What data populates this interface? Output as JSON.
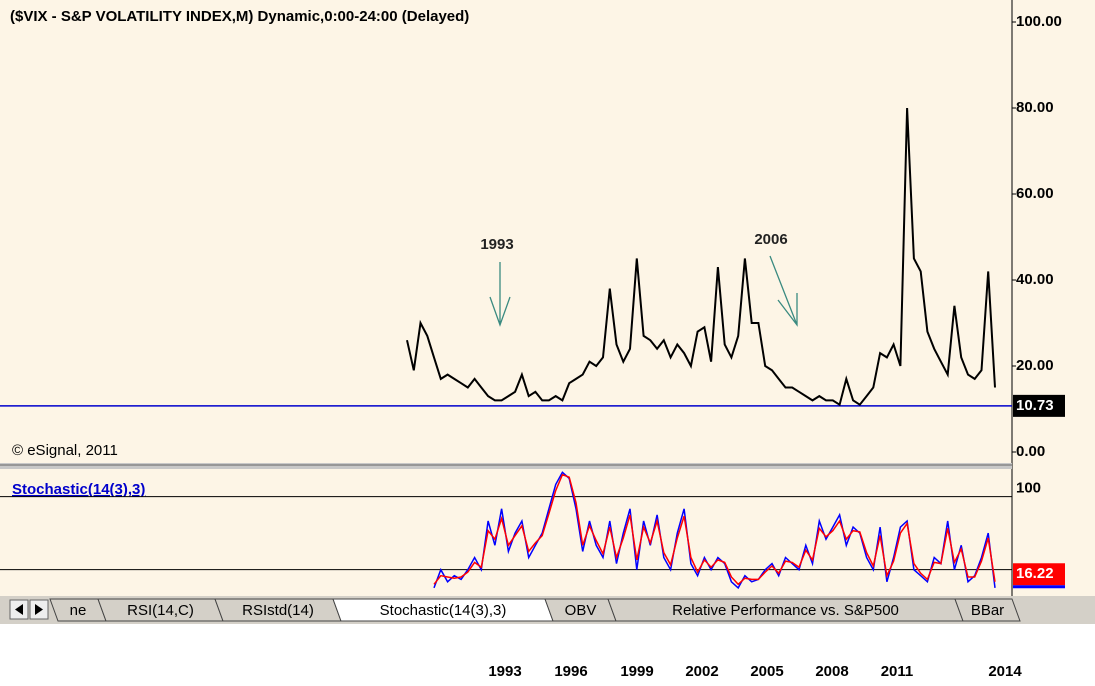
{
  "chart_data": [
    {
      "type": "line",
      "title": "($VIX - S&P VOLATILITY INDEX,M) Dynamic,0:00-24:00 (Delayed)",
      "x": [
        1990,
        1990.25,
        1990.5,
        1990.75,
        1991,
        1991.25,
        1991.5,
        1991.75,
        1992,
        1992.25,
        1992.5,
        1992.75,
        1993,
        1993.25,
        1993.5,
        1993.75,
        1994,
        1994.25,
        1994.5,
        1994.75,
        1995,
        1995.25,
        1995.5,
        1995.75,
        1996,
        1996.25,
        1996.5,
        1996.75,
        1997,
        1997.25,
        1997.5,
        1997.75,
        1998,
        1998.25,
        1998.5,
        1998.75,
        1999,
        1999.25,
        1999.5,
        1999.75,
        2000,
        2000.25,
        2000.5,
        2000.75,
        2001,
        2001.25,
        2001.5,
        2001.75,
        2002,
        2002.25,
        2002.5,
        2002.75,
        2003,
        2003.25,
        2003.5,
        2003.75,
        2004,
        2004.25,
        2004.5,
        2004.75,
        2005,
        2005.25,
        2005.5,
        2005.75,
        2006,
        2006.25,
        2006.5,
        2006.75,
        2007,
        2007.25,
        2007.5,
        2007.75,
        2008,
        2008.25,
        2008.5,
        2008.75,
        2009,
        2009.25,
        2009.5,
        2009.75,
        2010,
        2010.25,
        2010.5,
        2010.75,
        2011,
        2011.25,
        2011.5,
        2011.75
      ],
      "series": [
        {
          "color": "#000000",
          "values": [
            26,
            19,
            30,
            27,
            22,
            17,
            18,
            17,
            16,
            15,
            17,
            15,
            13,
            12,
            12,
            13,
            14,
            18,
            13,
            14,
            12,
            12,
            13,
            12,
            16,
            17,
            18,
            21,
            20,
            22,
            38,
            25,
            21,
            24,
            45,
            27,
            26,
            24,
            26,
            22,
            25,
            23,
            20,
            28,
            29,
            21,
            43,
            25,
            22,
            27,
            45,
            30,
            30,
            20,
            19,
            17,
            15,
            15,
            14,
            13,
            12,
            13,
            12,
            12,
            11,
            17,
            12,
            11,
            13,
            15,
            23,
            22,
            25,
            20,
            80,
            45,
            42,
            28,
            24,
            21,
            18,
            34,
            22,
            18,
            17,
            19,
            42,
            15
          ]
        }
      ],
      "ylim": [
        0,
        100
      ],
      "yticks": [
        {
          "value": 0,
          "label": "0.00"
        },
        {
          "value": 20,
          "label": "20.00"
        },
        {
          "value": 40,
          "label": "40.00"
        },
        {
          "value": 60,
          "label": "60.00"
        },
        {
          "value": 80,
          "label": "80.00"
        },
        {
          "value": 100,
          "label": "100.00"
        }
      ],
      "current_value": 10.73,
      "current_color": "#0000cc",
      "xticks": [
        1993,
        1996,
        1999,
        2002,
        2005,
        2008,
        2011,
        2014
      ],
      "annotations": [
        "1993",
        "2006"
      ],
      "copyright": "© eSignal, 2011"
    },
    {
      "type": "line",
      "title": "Stochastic(14(3),3)",
      "x": [
        1990,
        1990.25,
        1990.5,
        1990.75,
        1991,
        1991.25,
        1991.5,
        1991.75,
        1992,
        1992.25,
        1992.5,
        1992.75,
        1993,
        1993.25,
        1993.5,
        1993.75,
        1994,
        1994.25,
        1994.5,
        1994.75,
        1995,
        1995.25,
        1995.5,
        1995.75,
        1996,
        1996.25,
        1996.5,
        1996.75,
        1997,
        1997.25,
        1997.5,
        1997.75,
        1998,
        1998.25,
        1998.5,
        1998.75,
        1999,
        1999.25,
        1999.5,
        1999.75,
        2000,
        2000.25,
        2000.5,
        2000.75,
        2001,
        2001.25,
        2001.5,
        2001.75,
        2002,
        2002.25,
        2002.5,
        2002.75,
        2003,
        2003.25,
        2003.5,
        2003.75,
        2004,
        2004.25,
        2004.5,
        2004.75,
        2005,
        2005.25,
        2005.5,
        2005.75,
        2006,
        2006.25,
        2006.5,
        2006.75,
        2007,
        2007.25,
        2007.5,
        2007.75,
        2008,
        2008.25,
        2008.5,
        2008.75,
        2009,
        2009.25,
        2009.5,
        2009.75,
        2010,
        2010.25,
        2010.5,
        2010.75,
        2011,
        2011.25,
        2011.5,
        2011.75
      ],
      "series": [
        {
          "color": "#0000ff",
          "values": [
            null,
            null,
            null,
            null,
            5,
            20,
            10,
            15,
            12,
            20,
            30,
            20,
            60,
            40,
            70,
            35,
            50,
            60,
            30,
            40,
            50,
            70,
            90,
            100,
            95,
            70,
            35,
            60,
            40,
            30,
            60,
            25,
            50,
            70,
            20,
            60,
            40,
            65,
            30,
            20,
            50,
            70,
            25,
            15,
            30,
            20,
            30,
            25,
            10,
            5,
            15,
            10,
            12,
            20,
            25,
            15,
            30,
            25,
            20,
            40,
            25,
            60,
            45,
            55,
            65,
            40,
            55,
            50,
            30,
            20,
            55,
            10,
            30,
            55,
            60,
            20,
            15,
            10,
            30,
            25,
            60,
            20,
            40,
            10,
            15,
            30,
            50,
            5
          ]
        },
        {
          "color": "#ff0000",
          "values": [
            null,
            null,
            null,
            null,
            8,
            15,
            14,
            13,
            14,
            18,
            26,
            22,
            52,
            45,
            62,
            40,
            48,
            56,
            35,
            42,
            48,
            66,
            85,
            98,
            96,
            75,
            40,
            56,
            44,
            33,
            55,
            30,
            46,
            65,
            28,
            55,
            42,
            60,
            34,
            24,
            46,
            64,
            30,
            18,
            28,
            22,
            28,
            26,
            14,
            8,
            13,
            12,
            12,
            18,
            23,
            17,
            27,
            26,
            22,
            36,
            28,
            54,
            47,
            52,
            60,
            45,
            52,
            51,
            34,
            23,
            48,
            15,
            27,
            50,
            58,
            25,
            17,
            12,
            26,
            25,
            54,
            26,
            37,
            14,
            14,
            27,
            46,
            10
          ]
        }
      ],
      "ylim": [
        0,
        100
      ],
      "yticks": [
        100
      ],
      "levels": [
        80,
        20
      ],
      "current_value": 16.22
    }
  ],
  "ui": {
    "tabs": [
      "ne",
      "RSI(14,C)",
      "RSIstd(14)",
      "Stochastic(14(3),3)",
      "OBV",
      "Relative Performance vs. S&P500",
      "BBar"
    ]
  }
}
